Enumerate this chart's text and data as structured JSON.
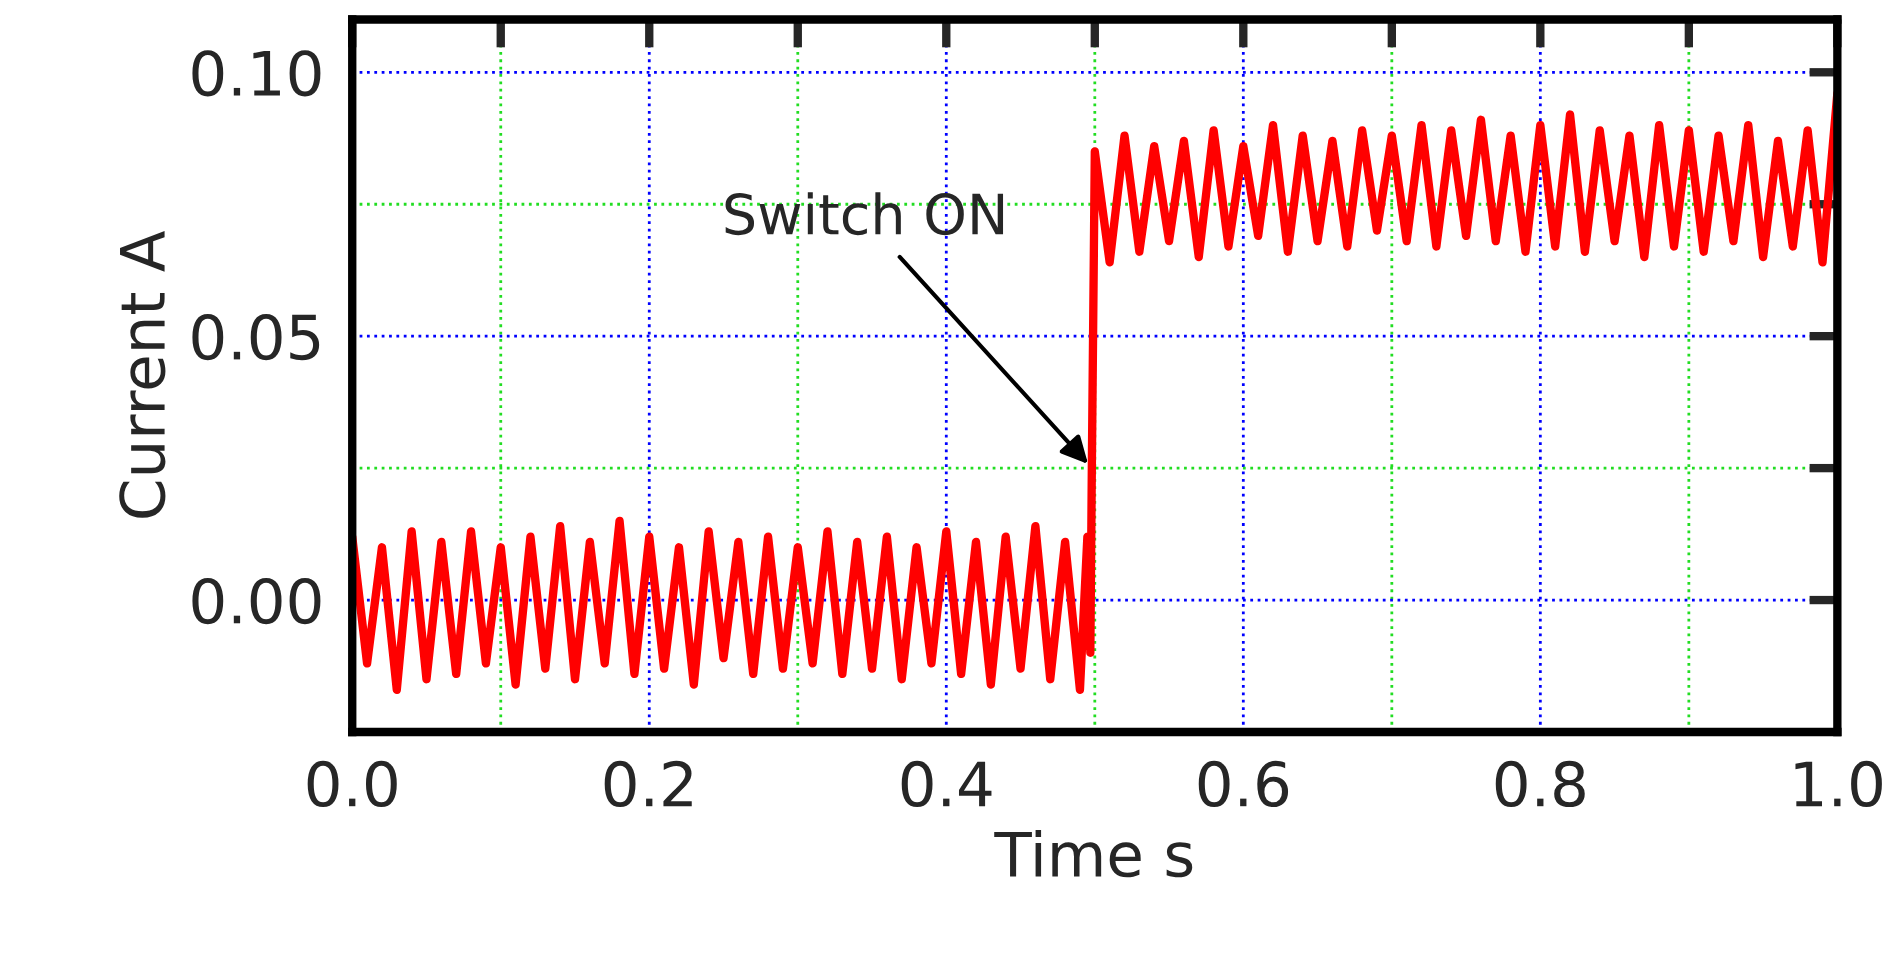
{
  "chart_data": {
    "type": "line",
    "xlabel": "Time s",
    "ylabel": "Current A",
    "xlim": [
      0.0,
      1.0
    ],
    "ylim": [
      -0.025,
      0.11
    ],
    "xticks": [
      {
        "value": 0.0,
        "label": "0.0"
      },
      {
        "value": 0.1,
        "label": null
      },
      {
        "value": 0.2,
        "label": "0.2"
      },
      {
        "value": 0.3,
        "label": null
      },
      {
        "value": 0.4,
        "label": "0.4"
      },
      {
        "value": 0.5,
        "label": null
      },
      {
        "value": 0.6,
        "label": "0.6"
      },
      {
        "value": 0.7,
        "label": null
      },
      {
        "value": 0.8,
        "label": "0.8"
      },
      {
        "value": 0.9,
        "label": null
      },
      {
        "value": 1.0,
        "label": "1.0"
      }
    ],
    "yticks": [
      {
        "value": 0.0,
        "label": "0.00"
      },
      {
        "value": 0.025,
        "label": null
      },
      {
        "value": 0.05,
        "label": "0.05"
      },
      {
        "value": 0.075,
        "label": null
      },
      {
        "value": 0.1,
        "label": "0.10"
      }
    ],
    "grid": true,
    "legend": false,
    "marker": "none",
    "line_style": "solid",
    "annotations": [
      {
        "text": "Switch ON",
        "x": 0.498,
        "y": 0.025
      }
    ],
    "series": [
      {
        "color": "#ff0000",
        "x": [
          0.0,
          0.01,
          0.02,
          0.03,
          0.04,
          0.05,
          0.06,
          0.07,
          0.08,
          0.09,
          0.1,
          0.11,
          0.12,
          0.13,
          0.14,
          0.15,
          0.16,
          0.17,
          0.18,
          0.19,
          0.2,
          0.21,
          0.22,
          0.23,
          0.24,
          0.25,
          0.26,
          0.27,
          0.28,
          0.29,
          0.3,
          0.31,
          0.32,
          0.33,
          0.34,
          0.35,
          0.36,
          0.37,
          0.38,
          0.39,
          0.4,
          0.41,
          0.42,
          0.43,
          0.44,
          0.45,
          0.46,
          0.47,
          0.48,
          0.49,
          0.495,
          0.497,
          0.498,
          0.5,
          0.51,
          0.52,
          0.53,
          0.54,
          0.55,
          0.56,
          0.57,
          0.58,
          0.59,
          0.6,
          0.61,
          0.62,
          0.63,
          0.64,
          0.65,
          0.66,
          0.67,
          0.68,
          0.69,
          0.7,
          0.71,
          0.72,
          0.73,
          0.74,
          0.75,
          0.76,
          0.77,
          0.78,
          0.79,
          0.8,
          0.81,
          0.82,
          0.83,
          0.84,
          0.85,
          0.86,
          0.87,
          0.88,
          0.89,
          0.9,
          0.91,
          0.92,
          0.93,
          0.94,
          0.95,
          0.96,
          0.97,
          0.98,
          0.99,
          1.0
        ],
        "values": [
          0.012,
          -0.012,
          0.01,
          -0.017,
          0.013,
          -0.015,
          0.011,
          -0.014,
          0.013,
          -0.012,
          0.01,
          -0.016,
          0.012,
          -0.013,
          0.014,
          -0.015,
          0.011,
          -0.012,
          0.015,
          -0.014,
          0.012,
          -0.013,
          0.01,
          -0.016,
          0.013,
          -0.011,
          0.011,
          -0.014,
          0.012,
          -0.013,
          0.01,
          -0.012,
          0.013,
          -0.014,
          0.011,
          -0.013,
          0.012,
          -0.015,
          0.01,
          -0.012,
          0.013,
          -0.014,
          0.011,
          -0.016,
          0.012,
          -0.013,
          0.014,
          -0.015,
          0.011,
          -0.017,
          0.012,
          -0.01,
          0.025,
          0.085,
          0.064,
          0.088,
          0.066,
          0.086,
          0.068,
          0.087,
          0.065,
          0.089,
          0.067,
          0.086,
          0.069,
          0.09,
          0.066,
          0.088,
          0.068,
          0.087,
          0.067,
          0.089,
          0.07,
          0.088,
          0.068,
          0.09,
          0.067,
          0.089,
          0.069,
          0.091,
          0.068,
          0.088,
          0.066,
          0.09,
          0.067,
          0.092,
          0.066,
          0.089,
          0.068,
          0.088,
          0.065,
          0.09,
          0.067,
          0.089,
          0.066,
          0.088,
          0.068,
          0.09,
          0.065,
          0.087,
          0.067,
          0.089,
          0.064,
          0.096
        ]
      }
    ]
  }
}
